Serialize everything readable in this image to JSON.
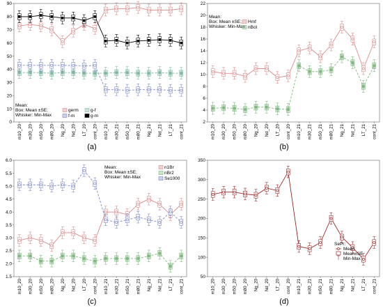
{
  "panels": [
    "(a)",
    "(b)",
    "(c)",
    "(d)"
  ],
  "chart_data": [
    {
      "type": "line",
      "panel": "(a)",
      "categories": [
        "m10_20",
        "m30_20",
        "m50_20",
        "m80_20",
        "Ng_20",
        "Nd_20",
        "LT_20",
        "cont_20",
        "m10_21",
        "m30_21",
        "m50_21",
        "m80_21",
        "Ng_21",
        "Nd_21",
        "LT_21",
        "cont_21"
      ],
      "ylim": [
        0,
        90
      ],
      "yticks": [
        0,
        10,
        20,
        30,
        40,
        50,
        60,
        70,
        80,
        90
      ],
      "legend_lines": [
        "Mean:",
        "Box: Mean ±SE;",
        "Whisker: Min-Max"
      ],
      "series": [
        {
          "name": "germ",
          "color": "#d98a8a",
          "style": "line",
          "marker": "circle",
          "values": [
            73,
            74,
            73,
            70,
            61,
            69,
            74,
            71,
            85,
            86,
            86,
            87,
            85,
            85,
            85,
            86
          ]
        },
        {
          "name": "g-f",
          "color": "#7fb8a0",
          "style": "dashed",
          "marker": "square",
          "values": [
            37.5,
            37.5,
            37.5,
            37,
            37.5,
            37.5,
            37,
            37,
            37,
            37.5,
            37.5,
            37,
            37,
            37.5,
            37,
            37
          ]
        },
        {
          "name": "f-m",
          "color": "#7f88c8",
          "style": "dashed",
          "marker": "circle",
          "values": [
            43,
            43,
            43,
            43,
            43,
            43,
            42.5,
            43,
            24.5,
            24.5,
            24,
            24.5,
            24.5,
            24.5,
            24,
            24
          ]
        },
        {
          "name": "g-m",
          "color": "#000000",
          "style": "solid-marker",
          "marker": "square",
          "values": [
            80,
            80,
            81,
            80,
            79,
            79,
            77,
            80,
            61.5,
            62,
            60,
            61.5,
            62,
            62.5,
            62,
            60
          ]
        }
      ]
    },
    {
      "type": "line",
      "panel": "(b)",
      "categories": [
        "m10_20",
        "m30_20",
        "m50_20",
        "m80_20",
        "Ng_20",
        "Nd_20",
        "LT_20",
        "cont_20",
        "m10_21",
        "m30_21",
        "m50_21",
        "m80_21",
        "Ng_21",
        "Nd_21",
        "LT_21",
        "cont_21"
      ],
      "ylim": [
        2,
        22
      ],
      "yticks": [
        2,
        4,
        6,
        8,
        10,
        12,
        14,
        16,
        18,
        20,
        22
      ],
      "legend_lines": [
        "Mean:",
        "Box: Mean ±SE;",
        "Whisker: Min-Max"
      ],
      "series": [
        {
          "name": "Hmf",
          "color": "#d98a8a",
          "style": "line",
          "marker": "circle",
          "values": [
            10.5,
            10.2,
            10.2,
            9.7,
            11,
            11,
            9.5,
            9.8,
            14,
            14.5,
            13,
            15,
            18,
            16,
            11,
            15.5
          ]
        },
        {
          "name": "nBol",
          "color": "#7fb87f",
          "style": "dashed",
          "marker": "square",
          "values": [
            4.3,
            4.4,
            4.3,
            4.1,
            4.5,
            4.5,
            4.2,
            4.1,
            11.5,
            10.5,
            10.5,
            10.8,
            13,
            12,
            8,
            11.5
          ]
        }
      ]
    },
    {
      "type": "line",
      "panel": "(c)",
      "categories": [
        "m10_20",
        "m30_20",
        "m50_20",
        "m80_20",
        "Ng_20",
        "Nd_20",
        "LT_20",
        "cont_20",
        "m10_21",
        "m30_21",
        "m50_21",
        "m80_21",
        "Ng_21",
        "Nd_21",
        "LT_21",
        "cont_21"
      ],
      "ylim": [
        1.5,
        6.0
      ],
      "yticks": [
        1.5,
        2.0,
        2.5,
        3.0,
        3.5,
        4.0,
        4.5,
        5.0,
        5.5,
        6.0
      ],
      "legend_lines": [
        "Mean:",
        "Box: Mean ±SE;",
        "Whisker: Min-Max"
      ],
      "series": [
        {
          "name": "n1Br",
          "color": "#d98a8a",
          "style": "line",
          "marker": "circle",
          "values": [
            2.9,
            3.0,
            2.9,
            2.7,
            3.2,
            3.2,
            3.0,
            2.9,
            4.0,
            4.0,
            3.9,
            4.3,
            4.5,
            4.3,
            3.9,
            4.3
          ]
        },
        {
          "name": "nBr2",
          "color": "#7fb87f",
          "style": "dashed",
          "marker": "square",
          "values": [
            2.3,
            2.3,
            2.1,
            2.1,
            2.3,
            2.3,
            2.2,
            2.1,
            2.2,
            2.2,
            2.2,
            2.2,
            2.3,
            2.4,
            1.9,
            2.3
          ]
        },
        {
          "name": "Se1000",
          "color": "#7f88c8",
          "style": "dashed",
          "marker": "circle",
          "values": [
            5.05,
            5.05,
            5.05,
            5.0,
            5.05,
            5.0,
            5.6,
            5.1,
            3.7,
            3.6,
            3.7,
            3.8,
            3.7,
            3.6,
            4.0,
            3.6
          ]
        }
      ]
    },
    {
      "type": "line",
      "panel": "(d)",
      "categories": [
        "m10_20",
        "m30_20",
        "m50_20",
        "m80_20",
        "Ng_20",
        "Nd_20",
        "LT_20",
        "cont_20",
        "m10_21",
        "m30_21",
        "m50_21",
        "m80_21",
        "Ng_21",
        "Nd_21",
        "LT_21",
        "cont_21"
      ],
      "ylim": [
        50,
        350
      ],
      "yticks": [
        50,
        100,
        150,
        200,
        250,
        300,
        350
      ],
      "legend_lines": [
        "SePr:"
      ],
      "legend_entries": [
        "Mean",
        "Mean±SE",
        "Min-Max"
      ],
      "series": [
        {
          "name": "SePr",
          "color": "#9b2a2a",
          "style": "line",
          "marker": "circle",
          "values": [
            262,
            268,
            268,
            263,
            260,
            278,
            272,
            320,
            128,
            122,
            138,
            200,
            152,
            125,
            95,
            138
          ]
        }
      ]
    }
  ]
}
